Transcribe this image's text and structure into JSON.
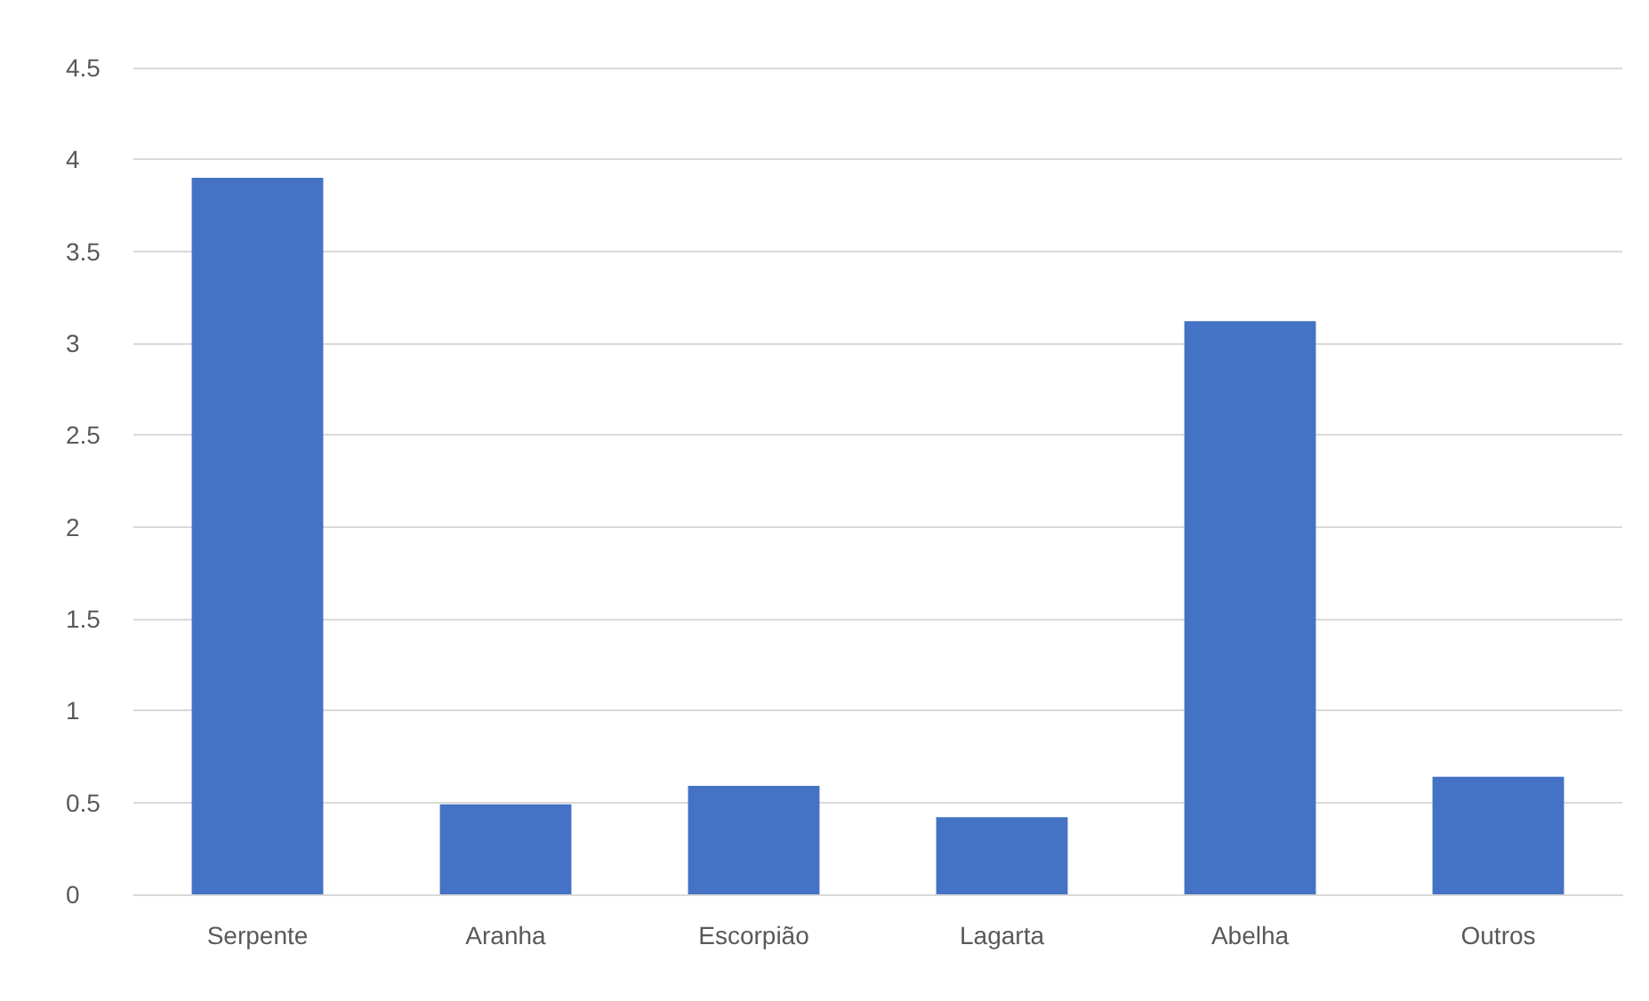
{
  "chart_data": {
    "type": "bar",
    "categories": [
      "Serpente",
      "Aranha",
      "Escorpião",
      "Lagarta",
      "Abelha",
      "Outros"
    ],
    "values": [
      3.9,
      0.49,
      0.59,
      0.42,
      3.12,
      0.64
    ],
    "color": "#4472c4",
    "ylim": [
      0,
      4.5
    ],
    "yticks": [
      0,
      0.5,
      1,
      1.5,
      2,
      2.5,
      3,
      3.5,
      4,
      4.5
    ],
    "grid": "y"
  }
}
